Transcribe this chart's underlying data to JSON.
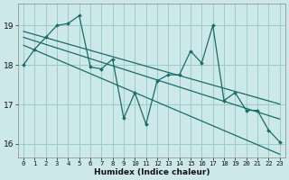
{
  "xlabel": "Humidex (Indice chaleur)",
  "bg_color": "#cce8e8",
  "grid_color": "#99cccc",
  "line_color": "#1a6b6b",
  "xlim": [
    -0.5,
    23.5
  ],
  "ylim": [
    15.65,
    19.55
  ],
  "yticks": [
    16,
    17,
    18,
    19
  ],
  "xticks": [
    0,
    1,
    2,
    3,
    4,
    5,
    6,
    7,
    8,
    9,
    10,
    11,
    12,
    13,
    14,
    15,
    16,
    17,
    18,
    19,
    20,
    21,
    22,
    23
  ],
  "jagged": [
    18.0,
    18.4,
    18.7,
    19.0,
    19.05,
    19.25,
    17.95,
    17.9,
    18.15,
    16.65,
    17.3,
    16.5,
    17.6,
    17.75,
    17.75,
    18.35,
    18.05,
    19.0,
    17.1,
    17.3,
    16.85,
    16.85,
    16.35,
    16.05
  ],
  "smooth1": [
    18.85,
    18.77,
    18.69,
    18.61,
    18.53,
    18.45,
    18.37,
    18.29,
    18.21,
    18.13,
    18.05,
    17.97,
    17.89,
    17.81,
    17.73,
    17.65,
    17.57,
    17.49,
    17.41,
    17.33,
    17.25,
    17.17,
    17.09,
    17.01
  ],
  "smooth2": [
    18.7,
    18.61,
    18.52,
    18.43,
    18.34,
    18.25,
    18.16,
    18.07,
    17.98,
    17.89,
    17.8,
    17.71,
    17.62,
    17.53,
    17.44,
    17.35,
    17.26,
    17.17,
    17.08,
    16.99,
    16.9,
    16.81,
    16.72,
    16.63
  ],
  "smooth3": [
    18.5,
    18.38,
    18.26,
    18.14,
    18.02,
    17.9,
    17.78,
    17.66,
    17.54,
    17.42,
    17.3,
    17.18,
    17.06,
    16.94,
    16.82,
    16.7,
    16.58,
    16.46,
    16.34,
    16.22,
    16.1,
    15.98,
    15.86,
    15.74
  ]
}
